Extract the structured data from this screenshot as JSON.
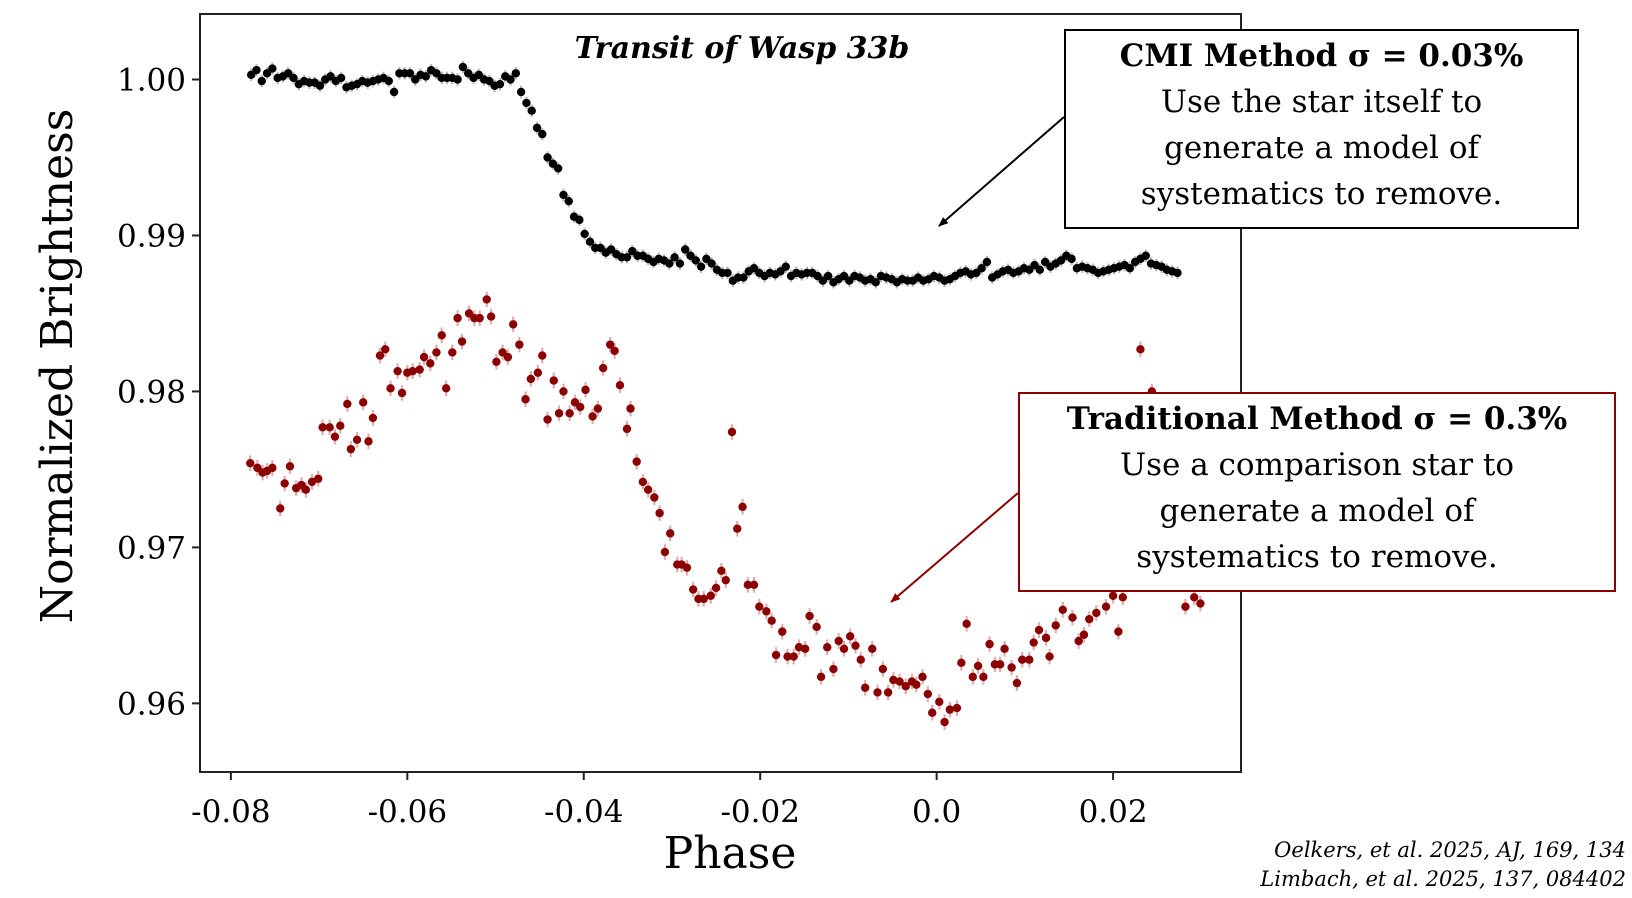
{
  "chart_data": {
    "type": "scatter",
    "title": "Transit of Wasp 33b",
    "xlabel": "Phase",
    "ylabel": "Normalized Brightness",
    "xlim": [
      -0.0835,
      0.0345
    ],
    "ylim": [
      0.9556,
      1.0042
    ],
    "xticks": [
      -0.08,
      -0.06,
      -0.04,
      -0.02,
      0.0,
      0.02
    ],
    "xtick_labels": [
      "-0.08",
      "-0.06",
      "-0.04",
      "-0.02",
      "0.0",
      "0.02"
    ],
    "yticks": [
      1.0,
      0.99,
      0.98,
      0.97,
      0.96
    ],
    "ytick_labels": [
      "1.00",
      "0.99",
      "0.98",
      "0.97",
      "0.96"
    ],
    "grid": false,
    "series": [
      {
        "name": "CMI Method",
        "color": "#000000",
        "errorbar_color": "#b0b0b0",
        "yerr": 0.0004,
        "x_start": -0.0777,
        "x_step": 0.0006,
        "values": [
          1.0003,
          1.0006,
          0.9999,
          1.0004,
          1.0007,
          1.0001,
          1.0002,
          1.0004,
          1.0001,
          0.9997,
          0.9999,
          0.9998,
          0.9998,
          0.9996,
          1.0,
          1.0002,
          0.9999,
          1.0001,
          0.9995,
          0.9996,
          0.9997,
          0.9999,
          0.9998,
          0.9999,
          1.0,
          1.0001,
          0.9999,
          0.9992,
          1.0004,
          1.0004,
          1.0004,
          1.0,
          1.0003,
          1.0002,
          1.0006,
          1.0004,
          1.0001,
          1.0001,
          1.0001,
          1.0,
          1.0008,
          1.0004,
          1.0001,
          1.0003,
          1.0,
          0.9999,
          0.9996,
          0.9997,
          1.0002,
          1.0,
          1.0004,
          0.9992,
          0.9985,
          0.998,
          0.9969,
          0.9965,
          0.995,
          0.9946,
          0.9943,
          0.9926,
          0.9922,
          0.9912,
          0.991,
          0.9901,
          0.9896,
          0.9892,
          0.9892,
          0.9889,
          0.9891,
          0.9888,
          0.9886,
          0.9886,
          0.989,
          0.9887,
          0.9887,
          0.9885,
          0.9883,
          0.9885,
          0.9884,
          0.9882,
          0.9886,
          0.9882,
          0.9891,
          0.9887,
          0.9884,
          0.988,
          0.9885,
          0.9882,
          0.9878,
          0.9876,
          0.9876,
          0.9871,
          0.9873,
          0.9873,
          0.9877,
          0.9879,
          0.9876,
          0.9874,
          0.9876,
          0.9875,
          0.9877,
          0.988,
          0.9874,
          0.9876,
          0.9875,
          0.9876,
          0.9876,
          0.9874,
          0.9871,
          0.9874,
          0.987,
          0.9872,
          0.9874,
          0.9871,
          0.9874,
          0.9873,
          0.9871,
          0.9872,
          0.987,
          0.9874,
          0.9873,
          0.9872,
          0.987,
          0.9872,
          0.9871,
          0.9871,
          0.9873,
          0.9871,
          0.9872,
          0.9874,
          0.9873,
          0.9871,
          0.9872,
          0.9874,
          0.9876,
          0.9877,
          0.9875,
          0.9876,
          0.9879,
          0.9883,
          0.9873,
          0.9875,
          0.9877,
          0.9878,
          0.9876,
          0.9877,
          0.9879,
          0.9878,
          0.9881,
          0.9878,
          0.9883,
          0.988,
          0.9882,
          0.9884,
          0.9887,
          0.9885,
          0.9879,
          0.988,
          0.9879,
          0.9878,
          0.9876,
          0.9877,
          0.9878,
          0.9879,
          0.988,
          0.9881,
          0.9879,
          0.9883,
          0.9885,
          0.9887,
          0.9882,
          0.9881,
          0.988,
          0.9878,
          0.9877,
          0.9876
        ]
      },
      {
        "name": "Traditional Method",
        "color": "#8b0000",
        "errorbar_color": "#d9a0a0",
        "yerr": 0.0005,
        "points": [
          [
            -0.0778,
            0.9754
          ],
          [
            -0.077,
            0.9751
          ],
          [
            -0.0764,
            0.9748
          ],
          [
            -0.0759,
            0.9749
          ],
          [
            -0.0753,
            0.9751
          ],
          [
            -0.0744,
            0.9725
          ],
          [
            -0.0739,
            0.9741
          ],
          [
            -0.0733,
            0.9752
          ],
          [
            -0.0726,
            0.9738
          ],
          [
            -0.072,
            0.974
          ],
          [
            -0.0715,
            0.9737
          ],
          [
            -0.0708,
            0.9742
          ],
          [
            -0.0701,
            0.9744
          ],
          [
            -0.0696,
            0.9777
          ],
          [
            -0.0688,
            0.9777
          ],
          [
            -0.0682,
            0.9771
          ],
          [
            -0.0676,
            0.9778
          ],
          [
            -0.0668,
            0.9792
          ],
          [
            -0.0664,
            0.9763
          ],
          [
            -0.0657,
            0.9769
          ],
          [
            -0.065,
            0.9793
          ],
          [
            -0.0644,
            0.9768
          ],
          [
            -0.0639,
            0.9783
          ],
          [
            -0.0631,
            0.9823
          ],
          [
            -0.0625,
            0.9827
          ],
          [
            -0.0619,
            0.9802
          ],
          [
            -0.0611,
            0.9813
          ],
          [
            -0.0606,
            0.9799
          ],
          [
            -0.06,
            0.9812
          ],
          [
            -0.0594,
            0.9813
          ],
          [
            -0.0586,
            0.9814
          ],
          [
            -0.0581,
            0.9822
          ],
          [
            -0.0574,
            0.9818
          ],
          [
            -0.0567,
            0.9825
          ],
          [
            -0.0561,
            0.9836
          ],
          [
            -0.0556,
            0.9802
          ],
          [
            -0.0549,
            0.9825
          ],
          [
            -0.0543,
            0.9847
          ],
          [
            -0.0538,
            0.9832
          ],
          [
            -0.053,
            0.985
          ],
          [
            -0.0524,
            0.9847
          ],
          [
            -0.0518,
            0.9847
          ],
          [
            -0.051,
            0.9859
          ],
          [
            -0.0505,
            0.9848
          ],
          [
            -0.0499,
            0.9819
          ],
          [
            -0.0492,
            0.9825
          ],
          [
            -0.0486,
            0.9822
          ],
          [
            -0.048,
            0.9843
          ],
          [
            -0.0473,
            0.983
          ],
          [
            -0.0466,
            0.9795
          ],
          [
            -0.046,
            0.9808
          ],
          [
            -0.0452,
            0.9812
          ],
          [
            -0.0447,
            0.9823
          ],
          [
            -0.0441,
            0.9782
          ],
          [
            -0.0434,
            0.9807
          ],
          [
            -0.0428,
            0.9786
          ],
          [
            -0.0423,
            0.98
          ],
          [
            -0.0416,
            0.9786
          ],
          [
            -0.041,
            0.9793
          ],
          [
            -0.0404,
            0.979
          ],
          [
            -0.0398,
            0.9801
          ],
          [
            -0.039,
            0.9784
          ],
          [
            -0.0384,
            0.9789
          ],
          [
            -0.0378,
            0.9815
          ],
          [
            -0.037,
            0.983
          ],
          [
            -0.0365,
            0.9826
          ],
          [
            -0.0359,
            0.9804
          ],
          [
            -0.0351,
            0.9776
          ],
          [
            -0.0347,
            0.9789
          ],
          [
            -0.034,
            0.9755
          ],
          [
            -0.0333,
            0.9742
          ],
          [
            -0.0327,
            0.9737
          ],
          [
            -0.032,
            0.9732
          ],
          [
            -0.0314,
            0.9722
          ],
          [
            -0.0308,
            0.9697
          ],
          [
            -0.0302,
            0.9709
          ],
          [
            -0.0294,
            0.9689
          ],
          [
            -0.0289,
            0.9689
          ],
          [
            -0.0283,
            0.9687
          ],
          [
            -0.0276,
            0.9673
          ],
          [
            -0.027,
            0.9667
          ],
          [
            -0.0264,
            0.9667
          ],
          [
            -0.0256,
            0.9669
          ],
          [
            -0.025,
            0.9674
          ],
          [
            -0.0244,
            0.9685
          ],
          [
            -0.0239,
            0.9679
          ],
          [
            -0.0232,
            0.9774
          ],
          [
            -0.0226,
            0.9712
          ],
          [
            -0.022,
            0.9726
          ],
          [
            -0.0214,
            0.9676
          ],
          [
            -0.0207,
            0.9676
          ],
          [
            -0.0201,
            0.9662
          ],
          [
            -0.0193,
            0.9659
          ],
          [
            -0.0187,
            0.9653
          ],
          [
            -0.0182,
            0.9631
          ],
          [
            -0.0175,
            0.9646
          ],
          [
            -0.0169,
            0.963
          ],
          [
            -0.0162,
            0.963
          ],
          [
            -0.0156,
            0.9636
          ],
          [
            -0.0149,
            0.9635
          ],
          [
            -0.0144,
            0.9656
          ],
          [
            -0.0136,
            0.9649
          ],
          [
            -0.0131,
            0.9617
          ],
          [
            -0.0124,
            0.9636
          ],
          [
            -0.0117,
            0.9622
          ],
          [
            -0.0111,
            0.964
          ],
          [
            -0.0105,
            0.9635
          ],
          [
            -0.0098,
            0.9643
          ],
          [
            -0.0092,
            0.9637
          ],
          [
            -0.0086,
            0.9628
          ],
          [
            -0.0081,
            0.961
          ],
          [
            -0.0073,
            0.9635
          ],
          [
            -0.0067,
            0.9607
          ],
          [
            -0.0061,
            0.9622
          ],
          [
            -0.0055,
            0.9607
          ],
          [
            -0.0049,
            0.9615
          ],
          [
            -0.0042,
            0.9614
          ],
          [
            -0.0035,
            0.9611
          ],
          [
            -0.0028,
            0.9614
          ],
          [
            -0.0023,
            0.9612
          ],
          [
            -0.0016,
            0.9617
          ],
          [
            -0.001,
            0.9606
          ],
          [
            -0.0005,
            0.9594
          ],
          [
            0.0003,
            0.9601
          ],
          [
            0.0009,
            0.9588
          ],
          [
            0.0015,
            0.9596
          ],
          [
            0.0023,
            0.9597
          ],
          [
            0.0028,
            0.9626
          ],
          [
            0.0034,
            0.9651
          ],
          [
            0.0041,
            0.9617
          ],
          [
            0.0047,
            0.9624
          ],
          [
            0.0053,
            0.9617
          ],
          [
            0.006,
            0.9638
          ],
          [
            0.0066,
            0.9625
          ],
          [
            0.0072,
            0.9625
          ],
          [
            0.0077,
            0.9635
          ],
          [
            0.0085,
            0.9623
          ],
          [
            0.0091,
            0.9613
          ],
          [
            0.0097,
            0.9628
          ],
          [
            0.0105,
            0.9628
          ],
          [
            0.011,
            0.9639
          ],
          [
            0.0116,
            0.9647
          ],
          [
            0.0124,
            0.9642
          ],
          [
            0.0128,
            0.963
          ],
          [
            0.0135,
            0.965
          ],
          [
            0.0143,
            0.966
          ],
          [
            0.0154,
            0.9655
          ],
          [
            0.0161,
            0.964
          ],
          [
            0.0167,
            0.9644
          ],
          [
            0.0173,
            0.9654
          ],
          [
            0.0181,
            0.9658
          ],
          [
            0.0192,
            0.9662
          ],
          [
            0.02,
            0.9669
          ],
          [
            0.0206,
            0.9646
          ],
          [
            0.0211,
            0.9668
          ],
          [
            0.0231,
            0.9827
          ],
          [
            0.0244,
            0.98
          ],
          [
            0.0282,
            0.9662
          ],
          [
            0.0292,
            0.9668
          ],
          [
            0.0299,
            0.9664
          ]
        ]
      }
    ],
    "annotations": [
      {
        "heading": "CMI Method σ = 0.03%",
        "text": [
          "Use the star itself to",
          "generate a model of",
          "systematics to remove."
        ],
        "border_color": "#000000",
        "arrow_target": [
          -0.004,
          0.9901
        ]
      },
      {
        "heading": "Traditional Method σ = 0.3%",
        "text": [
          "Use a comparison star to",
          "generate a model of",
          "systematics to remove."
        ],
        "border_color": "#8b0000",
        "arrow_target": [
          -0.0053,
          0.9665
        ]
      }
    ]
  },
  "citations": [
    "Oelkers, et al. 2025, AJ, 169, 134",
    "Limbach, et al. 2025, 137, 084402"
  ]
}
